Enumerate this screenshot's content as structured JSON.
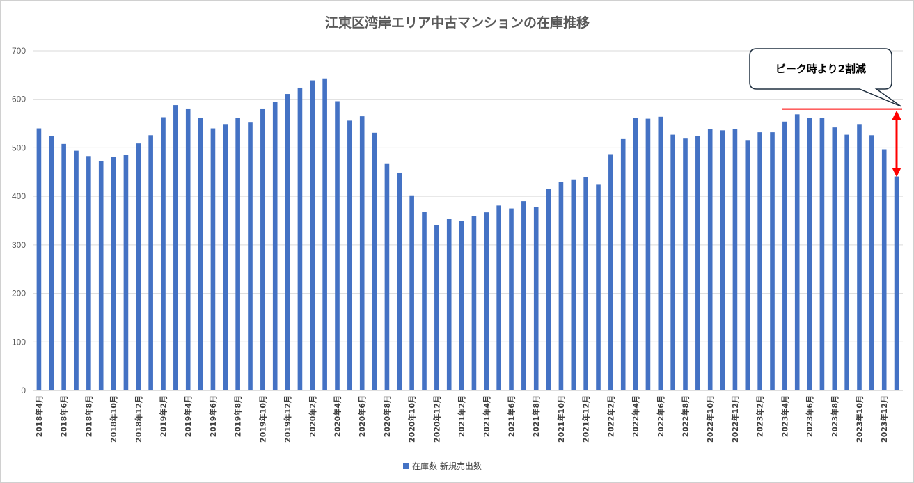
{
  "chart_data": {
    "type": "bar",
    "title": "江東区湾岸エリア中古マンションの在庫推移",
    "xlabel": "",
    "ylabel": "",
    "ylim": [
      0,
      700
    ],
    "yticks": [
      0,
      100,
      200,
      300,
      400,
      500,
      600,
      700
    ],
    "grid": true,
    "legend_position": "bottom",
    "categories": [
      "2018年4月",
      "2018年5月",
      "2018年6月",
      "2018年7月",
      "2018年8月",
      "2018年9月",
      "2018年10月",
      "2018年11月",
      "2018年12月",
      "2019年1月",
      "2019年2月",
      "2019年3月",
      "2019年4月",
      "2019年5月",
      "2019年6月",
      "2019年7月",
      "2019年8月",
      "2019年9月",
      "2019年10月",
      "2019年11月",
      "2019年12月",
      "2020年1月",
      "2020年2月",
      "2020年3月",
      "2020年4月",
      "2020年5月",
      "2020年6月",
      "2020年7月",
      "2020年8月",
      "2020年9月",
      "2020年10月",
      "2020年11月",
      "2020年12月",
      "2021年1月",
      "2021年2月",
      "2021年3月",
      "2021年4月",
      "2021年5月",
      "2021年6月",
      "2021年7月",
      "2021年8月",
      "2021年9月",
      "2021年10月",
      "2021年11月",
      "2021年12月",
      "2022年1月",
      "2022年2月",
      "2022年3月",
      "2022年4月",
      "2022年5月",
      "2022年6月",
      "2022年7月",
      "2022年8月",
      "2022年9月",
      "2022年10月",
      "2022年11月",
      "2022年12月",
      "2023年1月",
      "2023年2月",
      "2023年3月",
      "2023年4月",
      "2023年5月",
      "2023年6月",
      "2023年7月",
      "2023年8月",
      "2023年9月",
      "2023年10月",
      "2023年11月",
      "2023年12月",
      "2024年1月"
    ],
    "series": [
      {
        "name": "在庫数 新規売出数",
        "color": "#4472C4",
        "values": [
          540,
          524,
          508,
          494,
          483,
          472,
          481,
          486,
          509,
          526,
          563,
          588,
          581,
          561,
          540,
          549,
          561,
          552,
          581,
          594,
          611,
          624,
          639,
          643,
          596,
          556,
          565,
          531,
          468,
          449,
          402,
          368,
          340,
          353,
          349,
          360,
          367,
          381,
          375,
          390,
          378,
          415,
          429,
          435,
          439,
          424,
          487,
          518,
          562,
          560,
          564,
          527,
          519,
          525,
          539,
          536,
          539,
          516,
          532,
          532,
          554,
          569,
          562,
          561,
          542,
          527,
          549,
          526,
          497,
          441
        ]
      }
    ],
    "visible_xtick_labels": [
      "2018年4月",
      "2018年6月",
      "2018年8月",
      "2018年10月",
      "2018年12月",
      "2019年2月",
      "2019年4月",
      "2019年6月",
      "2019年8月",
      "2019年10月",
      "2019年12月",
      "2020年2月",
      "2020年4月",
      "2020年6月",
      "2020年8月",
      "2020年10月",
      "2020年12月",
      "2021年2月",
      "2021年4月",
      "2021年6月",
      "2021年8月",
      "2021年10月",
      "2021年12月",
      "2022年2月",
      "2022年4月",
      "2022年6月",
      "2022年8月",
      "2022年10月",
      "2022年12月",
      "2023年2月",
      "2023年4月",
      "2023年6月",
      "2023年8月",
      "2023年10月",
      "2023年12月"
    ],
    "annotation": {
      "text": "ピーク時より2割減",
      "reference_value": 580,
      "line_color": "#FF0000",
      "from_category": "2023年4月",
      "arrow_from_value": 570,
      "arrow_to_value": 441
    }
  }
}
